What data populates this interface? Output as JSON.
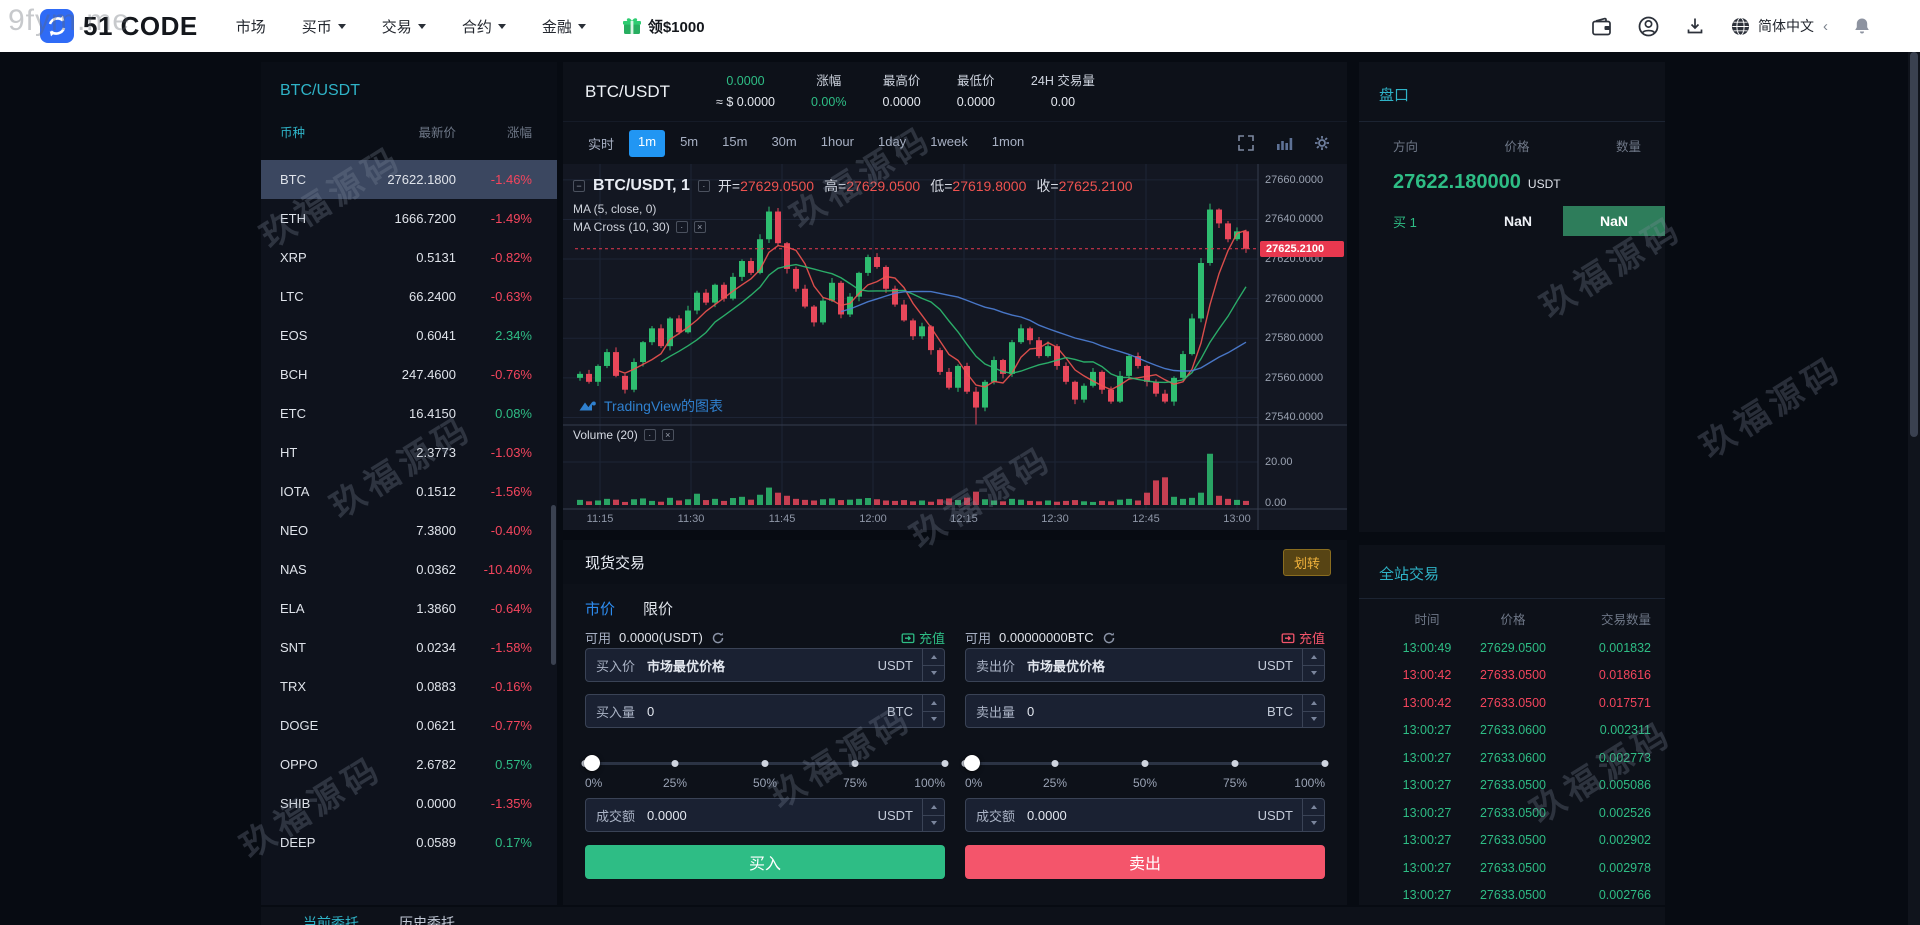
{
  "watermarks": {
    "main": "玖福源码",
    "corner": "9fym.me"
  },
  "navbar": {
    "logo_text": "51 CODE",
    "items": [
      {
        "label": "市场",
        "caret": false
      },
      {
        "label": "买币",
        "caret": true
      },
      {
        "label": "交易",
        "caret": true
      },
      {
        "label": "合约",
        "caret": true
      },
      {
        "label": "金融",
        "caret": true
      }
    ],
    "promo": "领$1000",
    "language": "简体中文"
  },
  "sidebar": {
    "title": "BTC/USDT",
    "columns": [
      "币种",
      "最新价",
      "涨幅"
    ],
    "coins": [
      {
        "sym": "BTC",
        "price": "27622.1800",
        "chg": "-1.46%",
        "dir": "down",
        "selected": true
      },
      {
        "sym": "ETH",
        "price": "1666.7200",
        "chg": "-1.49%",
        "dir": "down"
      },
      {
        "sym": "XRP",
        "price": "0.5131",
        "chg": "-0.82%",
        "dir": "down"
      },
      {
        "sym": "LTC",
        "price": "66.2400",
        "chg": "-0.63%",
        "dir": "down"
      },
      {
        "sym": "EOS",
        "price": "0.6041",
        "chg": "2.34%",
        "dir": "up"
      },
      {
        "sym": "BCH",
        "price": "247.4600",
        "chg": "-0.76%",
        "dir": "down"
      },
      {
        "sym": "ETC",
        "price": "16.4150",
        "chg": "0.08%",
        "dir": "up"
      },
      {
        "sym": "HT",
        "price": "2.3773",
        "chg": "-1.03%",
        "dir": "down"
      },
      {
        "sym": "IOTA",
        "price": "0.1512",
        "chg": "-1.56%",
        "dir": "down"
      },
      {
        "sym": "NEO",
        "price": "7.3800",
        "chg": "-0.40%",
        "dir": "down"
      },
      {
        "sym": "NAS",
        "price": "0.0362",
        "chg": "-10.40%",
        "dir": "down"
      },
      {
        "sym": "ELA",
        "price": "1.3860",
        "chg": "-0.64%",
        "dir": "down"
      },
      {
        "sym": "SNT",
        "price": "0.0234",
        "chg": "-1.58%",
        "dir": "down"
      },
      {
        "sym": "TRX",
        "price": "0.0883",
        "chg": "-0.16%",
        "dir": "down"
      },
      {
        "sym": "DOGE",
        "price": "0.0621",
        "chg": "-0.77%",
        "dir": "down"
      },
      {
        "sym": "OPPO",
        "price": "2.6782",
        "chg": "0.57%",
        "dir": "up"
      },
      {
        "sym": "SHIB",
        "price": "0.0000",
        "chg": "-1.35%",
        "dir": "down"
      },
      {
        "sym": "DEEP",
        "price": "0.0589",
        "chg": "0.17%",
        "dir": "up"
      }
    ]
  },
  "market_header": {
    "pair": "BTC/USDT",
    "price": "0.0000",
    "approx": "≈ $ 0.0000",
    "change_label": "涨幅",
    "change": "0.00%",
    "high_label": "最高价",
    "high": "0.0000",
    "low_label": "最低价",
    "low": "0.0000",
    "volume_label": "24H 交易量",
    "volume": "0.00"
  },
  "timeframes": [
    "实时",
    "1m",
    "5m",
    "15m",
    "30m",
    "1hour",
    "1day",
    "1week",
    "1mon"
  ],
  "selected_timeframe": "1m",
  "chart": {
    "legend_main": "BTC/USDT, 1",
    "ohlc": [
      {
        "k": "开",
        "v": "27629.0500"
      },
      {
        "k": "高",
        "v": "27629.0500"
      },
      {
        "k": "低",
        "v": "27619.8000"
      },
      {
        "k": "收",
        "v": "27625.2100"
      }
    ],
    "ma1": "MA (5, close, 0)",
    "ma2": "MA Cross (10, 30)",
    "volume_label": "Volume (20)",
    "tv_label": "TradingView的图表",
    "price_tag": "27625.2100",
    "chart_data": {
      "type": "candlestick",
      "interval": "1m",
      "pair": "BTC/USDT",
      "price_axis_ticks": [
        27660,
        27640,
        27620,
        27600,
        27580,
        27560,
        27540
      ],
      "vol_axis_ticks": [
        "20.00",
        "0.00"
      ],
      "time_ticks": [
        "11:15",
        "11:30",
        "11:45",
        "12:00",
        "12:15",
        "12:30",
        "12:45",
        "13:00"
      ],
      "last_price": 27625.21,
      "first_open": 27560,
      "closes": [
        27562,
        27558,
        27566,
        27573,
        27561,
        27554,
        27568,
        27578,
        27585,
        27576,
        27590,
        27583,
        27594,
        27603,
        27598,
        27607,
        27600,
        27611,
        27619,
        27613,
        27630,
        27644,
        27628,
        27615,
        27605,
        27596,
        27588,
        27599,
        27608,
        27592,
        27601,
        27613,
        27621,
        27616,
        27605,
        27597,
        27589,
        27581,
        27586,
        27574,
        27563,
        27555,
        27566,
        27553,
        27545,
        27558,
        27569,
        27562,
        27578,
        27585,
        27579,
        27571,
        27576,
        27566,
        27558,
        27549,
        27556,
        27563,
        27554,
        27548,
        27561,
        27571,
        27566,
        27558,
        27552,
        27548,
        27560,
        27572,
        27590,
        27618,
        27645,
        27638,
        27630,
        27634,
        27625.21
      ],
      "volumes": [
        2.5,
        1.8,
        2.2,
        3.0,
        2.6,
        1.5,
        2.8,
        3.2,
        2.0,
        1.6,
        3.5,
        2.2,
        2.8,
        5.5,
        2.4,
        3.0,
        2.0,
        3.4,
        4.0,
        2.6,
        5.0,
        8.5,
        6.0,
        4.5,
        3.0,
        2.5,
        2.2,
        2.8,
        3.2,
        2.4,
        2.6,
        3.0,
        3.4,
        2.8,
        2.2,
        2.0,
        2.4,
        1.8,
        2.2,
        1.6,
        2.8,
        3.2,
        2.4,
        3.6,
        6.5,
        2.8,
        2.2,
        1.8,
        3.0,
        2.6,
        2.0,
        1.8,
        2.2,
        1.6,
        2.0,
        2.4,
        1.8,
        1.5,
        2.0,
        1.8,
        2.6,
        3.0,
        2.2,
        6.0,
        12.0,
        13.5,
        4.0,
        3.0,
        3.5,
        6.0,
        25.0,
        4.5,
        3.0,
        2.5,
        2.0
      ]
    }
  },
  "order_book": {
    "title": "盘口",
    "headers": [
      "方向",
      "价格",
      "数量"
    ],
    "last_price": "27622.180000",
    "unit": "USDT",
    "row": {
      "side": "买 1",
      "price": "NaN",
      "qty": "NaN"
    }
  },
  "trades": {
    "title": "全站交易",
    "headers": [
      "时间",
      "价格",
      "交易数量"
    ],
    "rows": [
      {
        "time": "13:00:49",
        "price": "27629.0500",
        "qty": "0.001832",
        "dir": "up"
      },
      {
        "time": "13:00:42",
        "price": "27633.0500",
        "qty": "0.018616",
        "dir": "down"
      },
      {
        "time": "13:00:42",
        "price": "27633.0500",
        "qty": "0.017571",
        "dir": "down"
      },
      {
        "time": "13:00:27",
        "price": "27633.0600",
        "qty": "0.002311",
        "dir": "up"
      },
      {
        "time": "13:00:27",
        "price": "27633.0600",
        "qty": "0.002773",
        "dir": "up"
      },
      {
        "time": "13:00:27",
        "price": "27633.0500",
        "qty": "0.005086",
        "dir": "up"
      },
      {
        "time": "13:00:27",
        "price": "27633.0500",
        "qty": "0.002526",
        "dir": "up"
      },
      {
        "time": "13:00:27",
        "price": "27633.0500",
        "qty": "0.002902",
        "dir": "up"
      },
      {
        "time": "13:00:27",
        "price": "27633.0500",
        "qty": "0.002978",
        "dir": "up"
      },
      {
        "time": "13:00:27",
        "price": "27633.0500",
        "qty": "0.002766",
        "dir": "up"
      }
    ]
  },
  "spot": {
    "title": "现货交易",
    "transfer_label": "划转",
    "tabs": [
      "市价",
      "限价"
    ],
    "avail_label": "可用",
    "recharge_label": "充值",
    "slider_labels": [
      "0%",
      "25%",
      "50%",
      "75%",
      "100%"
    ],
    "buy": {
      "avail": "0.0000(USDT)",
      "price_label": "买入价",
      "price_placeholder": "市场最优价格",
      "price_unit": "USDT",
      "amount_label": "买入量",
      "amount_value": "0",
      "amount_unit": "BTC",
      "total_label": "成交额",
      "total_value": "0.0000",
      "total_unit": "USDT",
      "button": "买入"
    },
    "sell": {
      "avail": "0.00000000BTC",
      "price_label": "卖出价",
      "price_placeholder": "市场最优价格",
      "price_unit": "USDT",
      "amount_label": "卖出量",
      "amount_value": "0",
      "amount_unit": "BTC",
      "total_label": "成交额",
      "total_value": "0.0000",
      "total_unit": "USDT",
      "button": "卖出"
    }
  },
  "bottom_tabs": [
    "当前委托",
    "历史委托"
  ]
}
